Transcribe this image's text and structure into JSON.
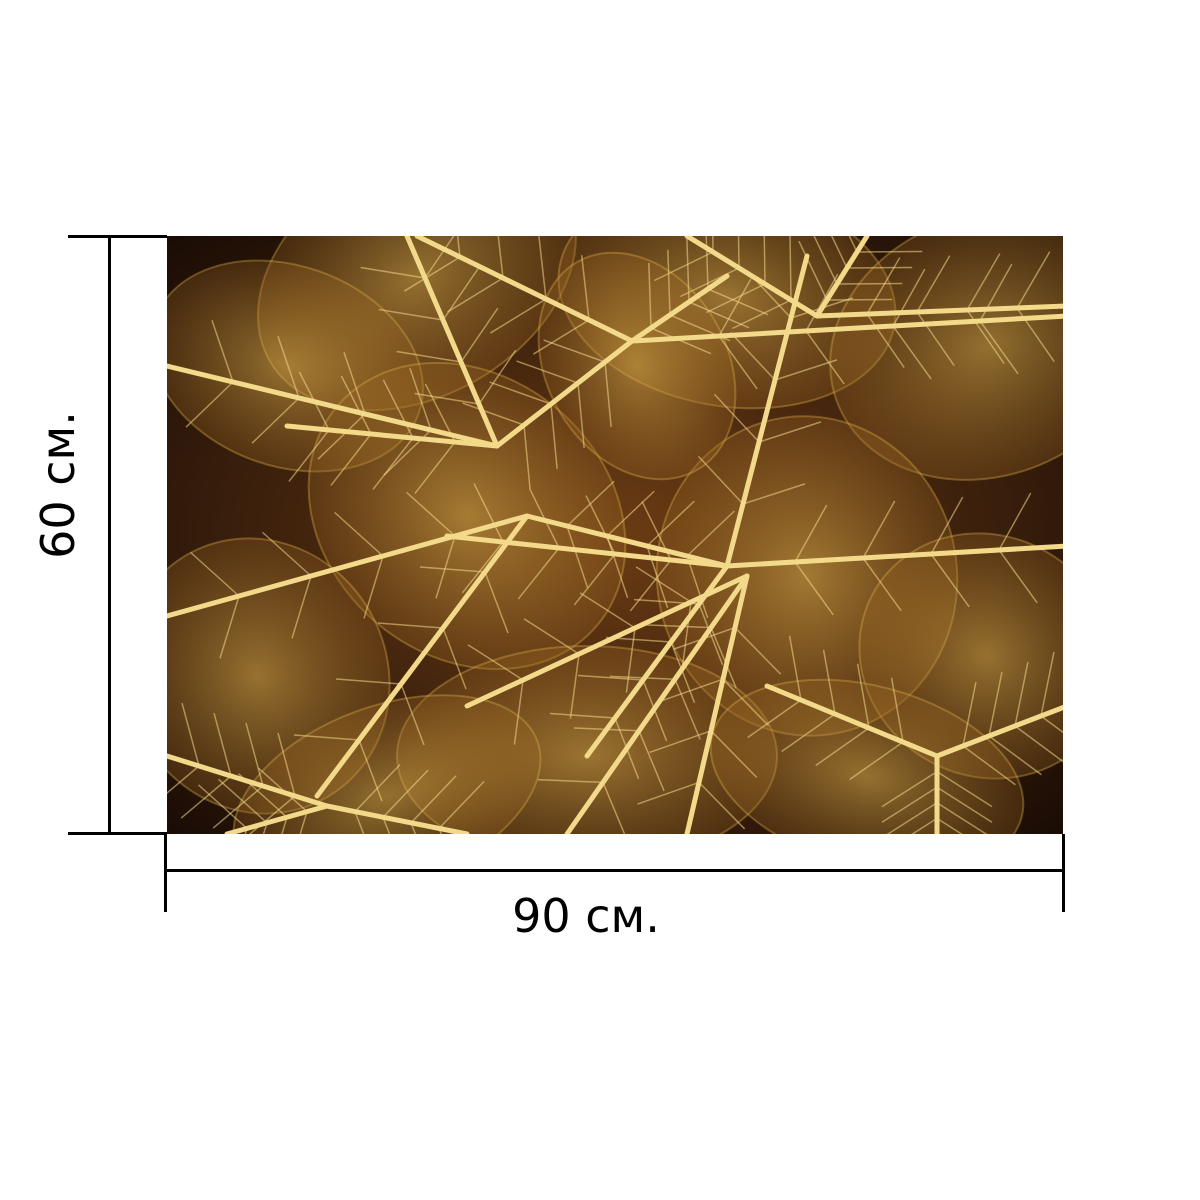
{
  "dimensions": {
    "width_label": "90 см.",
    "height_label": "60 см."
  },
  "artwork": {
    "subject": "golden-leaf-skeletons",
    "colors": {
      "background": "#3a1f0c",
      "dark": "#24120a",
      "leaf_fill": "#a8741f",
      "vein": "#f3d98a",
      "glow": "#e0b44a"
    }
  }
}
